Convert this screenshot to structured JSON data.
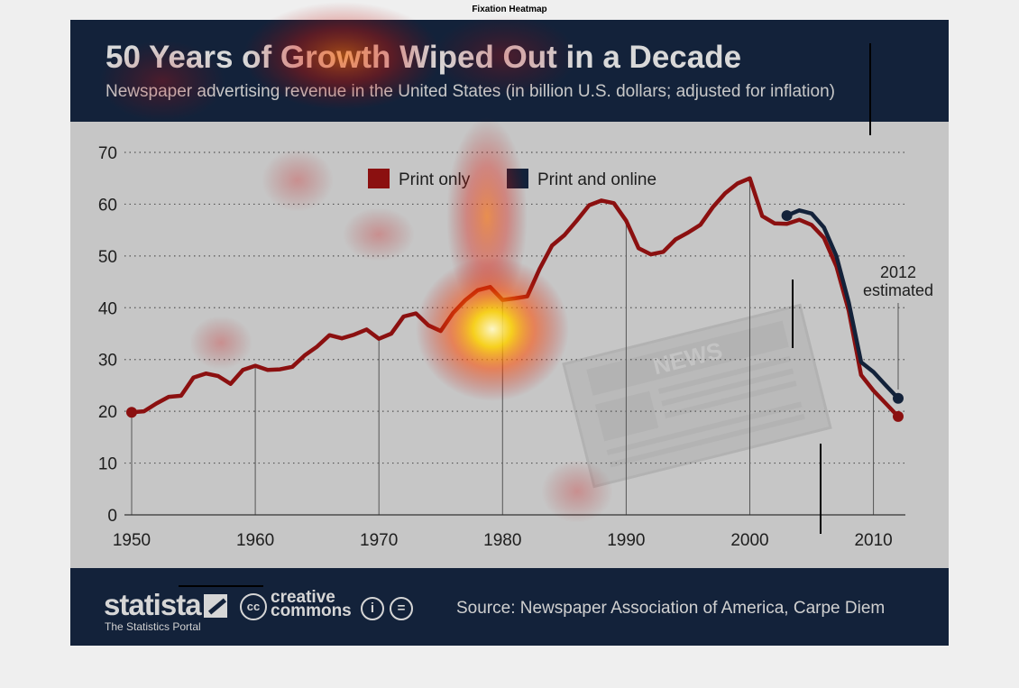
{
  "figure": {
    "title": "Fixation Heatmap"
  },
  "header": {
    "title": "50 Years of Growth Wiped Out in a Decade",
    "subtitle": "Newspaper advertising revenue in the United States (in billion U.S. dollars; adjusted for inflation)"
  },
  "footer": {
    "brand": "statista",
    "tagline": "The Statistics Portal",
    "license_icon": "cc",
    "license_text": "creative commons",
    "attribution_icon": "attribution-icon",
    "noderivs_icon": "no-derivatives-icon",
    "source": "Source: Newspaper Association of America, Carpe Diem"
  },
  "colors": {
    "header_bg": "#13223a",
    "panel_bg": "#c6c6c6",
    "print_only": "#8b1010",
    "print_and_online": "#13223a"
  },
  "decoration": {
    "newspaper_icon_label": "NEWS"
  },
  "chart_data": {
    "type": "line",
    "title": "50 Years of Growth Wiped Out in a Decade",
    "xlabel": "",
    "ylabel": "",
    "xlim": [
      1950,
      2012
    ],
    "ylim": [
      0,
      70
    ],
    "xticks": [
      1950,
      1960,
      1970,
      1980,
      1990,
      2000,
      2010
    ],
    "yticks": [
      0,
      10,
      20,
      30,
      40,
      50,
      60,
      70
    ],
    "grid": "horizontal dotted",
    "legend": "top-center",
    "annotation": {
      "text_line1": "2012",
      "text_line2": "estimated",
      "x": 2012
    },
    "series": [
      {
        "name": "Print only",
        "color": "#8b1010",
        "x": [
          1950,
          1951,
          1952,
          1953,
          1954,
          1955,
          1956,
          1957,
          1958,
          1959,
          1960,
          1961,
          1962,
          1963,
          1964,
          1965,
          1966,
          1967,
          1968,
          1969,
          1970,
          1971,
          1972,
          1973,
          1974,
          1975,
          1976,
          1977,
          1978,
          1979,
          1980,
          1981,
          1982,
          1983,
          1984,
          1985,
          1986,
          1987,
          1988,
          1989,
          1990,
          1991,
          1992,
          1993,
          1994,
          1995,
          1996,
          1997,
          1998,
          1999,
          2000,
          2001,
          2002,
          2003,
          2004,
          2005,
          2006,
          2007,
          2008,
          2009,
          2010,
          2011,
          2012
        ],
        "values": [
          19.8,
          20,
          21.5,
          22.8,
          23,
          26.5,
          27.3,
          26.8,
          25.3,
          28,
          28.8,
          28,
          28.1,
          28.6,
          30.8,
          32.5,
          34.7,
          34.1,
          34.8,
          35.8,
          34,
          35,
          38.3,
          38.9,
          36.6,
          35.5,
          39,
          41.5,
          43.4,
          44,
          41.5,
          41.8,
          42.2,
          47.5,
          52,
          54,
          56.8,
          59.8,
          60.7,
          60.2,
          56.8,
          51.5,
          50.3,
          50.8,
          53.2,
          54.5,
          56,
          59.4,
          62.1,
          64,
          65,
          57.7,
          56.3,
          56.2,
          57,
          56,
          53.5,
          48,
          39.4,
          27,
          24,
          21.5,
          19
        ]
      },
      {
        "name": "Print and online",
        "color": "#13223a",
        "x": [
          2003,
          2004,
          2005,
          2006,
          2007,
          2008,
          2009,
          2010,
          2011,
          2012
        ],
        "values": [
          57.8,
          58.8,
          58.2,
          55.5,
          50,
          41,
          29.5,
          27.6,
          25,
          22.5
        ]
      }
    ],
    "markers": [
      {
        "series": "Print only",
        "x": 1950,
        "y": 19.8
      },
      {
        "series": "Print only",
        "x": 2012,
        "y": 19
      },
      {
        "series": "Print and online",
        "x": 2003,
        "y": 57.8
      },
      {
        "series": "Print and online",
        "x": 2012,
        "y": 22.5
      }
    ]
  }
}
